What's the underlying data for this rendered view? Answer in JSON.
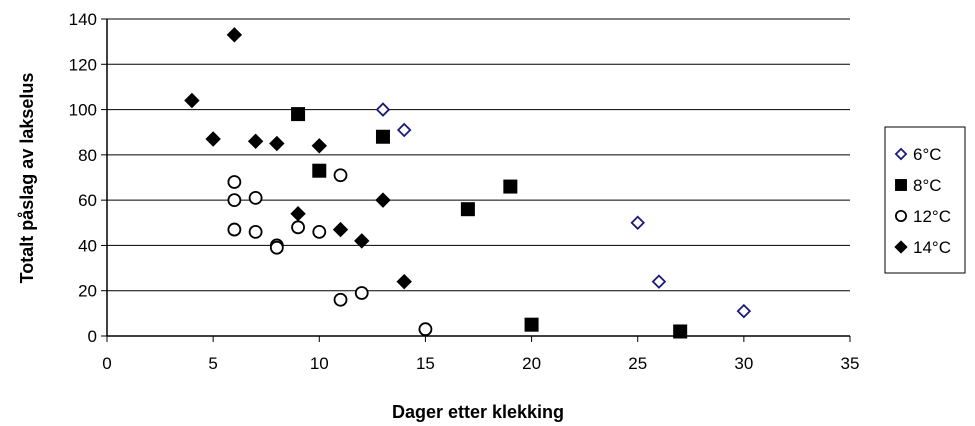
{
  "chart_data": {
    "type": "scatter",
    "xlabel": "Dager etter klekking",
    "ylabel": "Totalt påslag av lakselus",
    "xlim": [
      0,
      35
    ],
    "ylim": [
      0,
      140
    ],
    "xticks": [
      0,
      5,
      10,
      15,
      20,
      25,
      30,
      35
    ],
    "yticks": [
      0,
      20,
      40,
      60,
      80,
      100,
      120,
      140
    ],
    "grid": "horizontal",
    "legend_position": "right",
    "series": [
      {
        "name": "6°C",
        "marker": "diamond-open",
        "color": "#1a1a7a",
        "points": [
          [
            13,
            100
          ],
          [
            14,
            91
          ],
          [
            25,
            50
          ],
          [
            26,
            24
          ],
          [
            30,
            11
          ]
        ]
      },
      {
        "name": "8°C",
        "marker": "square-filled",
        "color": "#000000",
        "points": [
          [
            9,
            98
          ],
          [
            10,
            73
          ],
          [
            13,
            88
          ],
          [
            17,
            56
          ],
          [
            19,
            66
          ],
          [
            20,
            5
          ],
          [
            27,
            2
          ]
        ]
      },
      {
        "name": "12°C",
        "marker": "circle-open",
        "color": "#000000",
        "points": [
          [
            6,
            68
          ],
          [
            6,
            60
          ],
          [
            6,
            47
          ],
          [
            7,
            61
          ],
          [
            7,
            46
          ],
          [
            8,
            40
          ],
          [
            8,
            39
          ],
          [
            9,
            48
          ],
          [
            10,
            46
          ],
          [
            11,
            71
          ],
          [
            11,
            16
          ],
          [
            12,
            19
          ],
          [
            15,
            3
          ]
        ]
      },
      {
        "name": "14°C",
        "marker": "diamond-filled",
        "color": "#000000",
        "points": [
          [
            4,
            104
          ],
          [
            5,
            87
          ],
          [
            6,
            133
          ],
          [
            7,
            86
          ],
          [
            8,
            85
          ],
          [
            9,
            54
          ],
          [
            10,
            84
          ],
          [
            11,
            47
          ],
          [
            12,
            42
          ],
          [
            13,
            60
          ],
          [
            14,
            24
          ]
        ]
      }
    ]
  }
}
